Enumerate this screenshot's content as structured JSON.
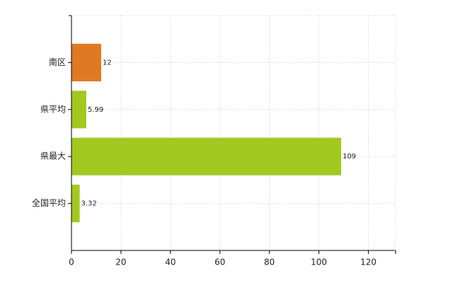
{
  "chart_data": {
    "type": "bar",
    "orientation": "horizontal",
    "categories": [
      "南区",
      "県平均",
      "県最大",
      "全国平均"
    ],
    "values": [
      12,
      5.99,
      109,
      3.32
    ],
    "colors": [
      "#e07a22",
      "#a2c91f",
      "#a2c91f",
      "#a2c91f"
    ],
    "xlim": [
      0,
      131
    ],
    "xticks": [
      0,
      20,
      40,
      60,
      80,
      100,
      120
    ],
    "grid": true
  }
}
